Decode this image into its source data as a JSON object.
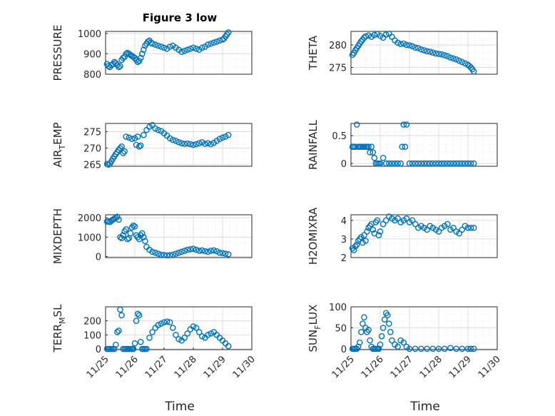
{
  "figure": {
    "title": "Figure 3 low"
  },
  "colors": {
    "marker": "#0072BD",
    "grid": "#dcdcdc",
    "axis": "#262626"
  },
  "chart_data": [
    {
      "type": "scatter",
      "ylabel": "PRESSURE",
      "ylabel_sub": null,
      "xlim": [
        0,
        5
      ],
      "ylim": [
        800,
        1010
      ],
      "yticks": [
        800,
        900,
        1000
      ],
      "x": [
        0.05,
        0.1,
        0.15,
        0.2,
        0.25,
        0.3,
        0.35,
        0.4,
        0.45,
        0.5,
        0.55,
        0.6,
        0.65,
        0.7,
        0.75,
        0.8,
        0.85,
        0.9,
        0.95,
        1.0,
        1.05,
        1.1,
        1.15,
        1.2,
        1.25,
        1.3,
        1.35,
        1.4,
        1.45,
        1.5,
        1.55,
        1.6,
        1.7,
        1.8,
        1.9,
        2.0,
        2.1,
        2.2,
        2.3,
        2.4,
        2.5,
        2.6,
        2.7,
        2.8,
        2.9,
        3.0,
        3.1,
        3.2,
        3.3,
        3.4,
        3.5,
        3.6,
        3.7,
        3.8,
        3.9,
        4.0,
        4.05,
        4.1,
        4.15,
        4.2
      ],
      "y": [
        850,
        840,
        835,
        845,
        850,
        860,
        855,
        845,
        835,
        840,
        870,
        880,
        885,
        900,
        905,
        900,
        895,
        890,
        885,
        880,
        870,
        860,
        865,
        880,
        900,
        920,
        940,
        950,
        960,
        965,
        955,
        950,
        945,
        940,
        935,
        930,
        925,
        935,
        940,
        930,
        920,
        910,
        915,
        920,
        925,
        930,
        925,
        920,
        930,
        935,
        945,
        950,
        955,
        960,
        965,
        970,
        975,
        985,
        995,
        1005
      ]
    },
    {
      "type": "scatter",
      "ylabel": "THETA",
      "ylabel_sub": null,
      "xlim": [
        0,
        5
      ],
      "ylim": [
        273.5,
        283
      ],
      "yticks": [
        275,
        280
      ],
      "x": [
        0.05,
        0.1,
        0.15,
        0.2,
        0.25,
        0.3,
        0.35,
        0.4,
        0.45,
        0.5,
        0.6,
        0.7,
        0.8,
        0.9,
        1.0,
        1.1,
        1.2,
        1.3,
        1.4,
        1.5,
        1.6,
        1.7,
        1.8,
        1.9,
        2.0,
        2.1,
        2.2,
        2.3,
        2.4,
        2.5,
        2.6,
        2.7,
        2.8,
        2.9,
        3.0,
        3.1,
        3.2,
        3.3,
        3.4,
        3.5,
        3.6,
        3.7,
        3.8,
        3.9,
        4.0,
        4.05,
        4.1,
        4.15,
        4.2
      ],
      "y": [
        277.8,
        278.2,
        278.8,
        279.3,
        279.8,
        280.3,
        280.8,
        281.2,
        281.6,
        281.9,
        282.1,
        281.8,
        282.2,
        282.4,
        282.0,
        281.6,
        282.3,
        282.5,
        281.8,
        281.0,
        280.5,
        280.2,
        280.3,
        280.0,
        279.9,
        279.7,
        279.4,
        279.3,
        279.0,
        278.8,
        278.6,
        278.5,
        278.3,
        278.1,
        278.0,
        277.9,
        277.7,
        277.5,
        277.2,
        277.0,
        276.8,
        276.5,
        276.2,
        275.9,
        275.6,
        275.3,
        275.0,
        274.6,
        274.1
      ]
    },
    {
      "type": "scatter",
      "ylabel": "AIR",
      "ylabel_sub": "T",
      "ylabel_after": "EMP",
      "xlim": [
        0,
        5
      ],
      "ylim": [
        264.5,
        277.5
      ],
      "yticks": [
        265,
        270,
        275
      ],
      "x": [
        0.05,
        0.1,
        0.15,
        0.2,
        0.25,
        0.3,
        0.35,
        0.4,
        0.45,
        0.5,
        0.55,
        0.6,
        0.65,
        0.7,
        0.8,
        0.9,
        1.0,
        1.05,
        1.1,
        1.15,
        1.2,
        1.3,
        1.4,
        1.5,
        1.6,
        1.7,
        1.8,
        1.9,
        2.0,
        2.1,
        2.2,
        2.3,
        2.4,
        2.5,
        2.6,
        2.7,
        2.8,
        2.9,
        3.0,
        3.1,
        3.2,
        3.3,
        3.4,
        3.5,
        3.6,
        3.7,
        3.8,
        3.9,
        4.0,
        4.1,
        4.2
      ],
      "y": [
        265.2,
        265.0,
        265.3,
        266.0,
        266.8,
        267.5,
        268.2,
        268.8,
        269.5,
        270.0,
        270.5,
        268.5,
        269.0,
        273.5,
        273.2,
        272.8,
        273.0,
        271.0,
        273.5,
        270.5,
        270.8,
        274.0,
        275.5,
        276.5,
        277.0,
        276.0,
        275.5,
        275.2,
        274.5,
        273.8,
        273.0,
        272.5,
        272.2,
        271.8,
        271.5,
        271.3,
        271.4,
        271.2,
        271.0,
        271.2,
        271.5,
        271.8,
        271.3,
        271.5,
        271.2,
        271.6,
        272.2,
        272.8,
        273.2,
        273.5,
        274.0
      ]
    },
    {
      "type": "scatter",
      "ylabel": "RAINFALL",
      "ylabel_sub": null,
      "xlim": [
        0,
        5
      ],
      "ylim": [
        -0.05,
        0.72
      ],
      "yticks": [
        0,
        0.5
      ],
      "x": [
        0.05,
        0.1,
        0.15,
        0.2,
        0.25,
        0.3,
        0.35,
        0.4,
        0.45,
        0.5,
        0.55,
        0.6,
        0.65,
        0.7,
        0.75,
        0.8,
        0.85,
        0.9,
        0.95,
        1.0,
        1.1,
        1.2,
        1.3,
        1.4,
        1.5,
        1.6,
        1.7,
        1.75,
        1.8,
        1.85,
        1.9,
        2.0,
        2.1,
        2.2,
        2.3,
        2.4,
        2.5,
        2.6,
        2.7,
        2.8,
        2.9,
        3.0,
        3.1,
        3.2,
        3.3,
        3.4,
        3.5,
        3.6,
        3.7,
        3.8,
        3.9,
        4.0,
        4.1,
        4.2
      ],
      "y": [
        0.3,
        0.3,
        0.3,
        0.7,
        0.3,
        0.3,
        0.3,
        0.3,
        0.3,
        0.3,
        0.3,
        0.3,
        0.2,
        0.3,
        0.2,
        0.1,
        0.0,
        0.0,
        0.0,
        0.0,
        0.1,
        0.0,
        0.0,
        0.0,
        0.0,
        0.0,
        0.0,
        0.3,
        0.7,
        0.3,
        0.7,
        0.0,
        0.0,
        0.0,
        0.0,
        0.0,
        0.0,
        0.0,
        0.0,
        0.0,
        0.0,
        0.0,
        0.0,
        0.0,
        0.0,
        0.0,
        0.0,
        0.0,
        0.0,
        0.0,
        0.0,
        0.0,
        0.0,
        0.0
      ]
    },
    {
      "type": "scatter",
      "ylabel": "MIXDEPTH",
      "ylabel_sub": null,
      "xlim": [
        0,
        5
      ],
      "ylim": [
        -50,
        2150
      ],
      "yticks": [
        0,
        1000,
        2000
      ],
      "x": [
        0.05,
        0.1,
        0.15,
        0.2,
        0.25,
        0.3,
        0.35,
        0.4,
        0.45,
        0.5,
        0.55,
        0.6,
        0.65,
        0.7,
        0.75,
        0.8,
        0.85,
        0.9,
        0.95,
        1.0,
        1.05,
        1.1,
        1.15,
        1.2,
        1.25,
        1.3,
        1.35,
        1.4,
        1.5,
        1.6,
        1.7,
        1.8,
        1.9,
        2.0,
        2.1,
        2.2,
        2.3,
        2.4,
        2.5,
        2.6,
        2.7,
        2.8,
        2.9,
        3.0,
        3.1,
        3.2,
        3.3,
        3.4,
        3.5,
        3.6,
        3.7,
        3.8,
        3.9,
        4.0,
        4.1,
        4.2
      ],
      "y": [
        1800,
        1820,
        1780,
        1850,
        1900,
        1950,
        2000,
        2050,
        1900,
        1000,
        950,
        1100,
        1300,
        1400,
        900,
        950,
        1200,
        1500,
        1600,
        1550,
        1100,
        1000,
        900,
        1100,
        1200,
        1000,
        800,
        500,
        350,
        250,
        200,
        150,
        100,
        80,
        60,
        70,
        100,
        150,
        200,
        250,
        300,
        350,
        380,
        400,
        350,
        300,
        320,
        280,
        250,
        300,
        320,
        280,
        200,
        180,
        150,
        120
      ]
    },
    {
      "type": "scatter",
      "ylabel": "H2OMIXRA",
      "ylabel_sub": null,
      "xlim": [
        0,
        5
      ],
      "ylim": [
        2,
        4.3
      ],
      "yticks": [
        2,
        3,
        4
      ],
      "x": [
        0.05,
        0.1,
        0.15,
        0.2,
        0.25,
        0.3,
        0.35,
        0.4,
        0.45,
        0.5,
        0.55,
        0.6,
        0.65,
        0.7,
        0.75,
        0.8,
        0.85,
        0.9,
        0.95,
        1.0,
        1.1,
        1.2,
        1.3,
        1.4,
        1.5,
        1.6,
        1.7,
        1.8,
        1.9,
        2.0,
        2.1,
        2.2,
        2.3,
        2.4,
        2.5,
        2.6,
        2.7,
        2.8,
        2.9,
        3.0,
        3.1,
        3.2,
        3.3,
        3.4,
        3.5,
        3.6,
        3.7,
        3.8,
        3.9,
        4.0,
        4.1,
        4.2
      ],
      "y": [
        2.5,
        2.4,
        2.6,
        2.7,
        2.9,
        3.0,
        3.1,
        2.8,
        3.2,
        2.9,
        3.4,
        3.6,
        3.7,
        3.8,
        3.5,
        3.3,
        3.9,
        4.0,
        3.2,
        3.4,
        3.8,
        4.0,
        4.2,
        4.1,
        4.0,
        4.1,
        3.9,
        4.0,
        4.1,
        3.9,
        4.0,
        3.8,
        3.6,
        3.7,
        3.6,
        3.5,
        3.7,
        3.6,
        3.5,
        3.4,
        3.6,
        3.7,
        3.8,
        3.5,
        3.6,
        3.4,
        3.3,
        3.5,
        3.7,
        3.6,
        3.6,
        3.6
      ]
    },
    {
      "type": "scatter",
      "ylabel": "TERR",
      "ylabel_sub": "M",
      "ylabel_after": "SL",
      "xlim": [
        0,
        5
      ],
      "ylim": [
        -5,
        300
      ],
      "yticks": [
        0,
        100,
        200
      ],
      "x": [
        0.05,
        0.1,
        0.15,
        0.2,
        0.25,
        0.3,
        0.35,
        0.4,
        0.45,
        0.5,
        0.55,
        0.6,
        0.65,
        0.7,
        0.75,
        0.8,
        0.85,
        0.9,
        0.95,
        1.0,
        1.05,
        1.1,
        1.15,
        1.2,
        1.25,
        1.3,
        1.35,
        1.4,
        1.5,
        1.6,
        1.7,
        1.8,
        1.9,
        2.0,
        2.1,
        2.2,
        2.3,
        2.4,
        2.5,
        2.6,
        2.7,
        2.8,
        2.9,
        3.0,
        3.1,
        3.2,
        3.3,
        3.4,
        3.5,
        3.6,
        3.7,
        3.8,
        3.9,
        4.0,
        4.1,
        4.2
      ],
      "y": [
        0,
        0,
        0,
        0,
        0,
        0,
        30,
        120,
        130,
        280,
        240,
        0,
        0,
        0,
        0,
        0,
        0,
        0,
        0,
        40,
        200,
        250,
        240,
        50,
        0,
        0,
        0,
        0,
        80,
        120,
        150,
        170,
        180,
        190,
        195,
        190,
        150,
        100,
        70,
        60,
        80,
        110,
        140,
        160,
        150,
        120,
        90,
        80,
        100,
        110,
        120,
        100,
        80,
        60,
        40,
        20
      ]
    },
    {
      "type": "scatter",
      "ylabel": "SUN",
      "ylabel_sub": "F",
      "ylabel_after": "LUX",
      "xlim": [
        0,
        5
      ],
      "ylim": [
        -2,
        100
      ],
      "yticks": [
        0,
        50,
        100
      ],
      "x": [
        0.05,
        0.1,
        0.15,
        0.2,
        0.25,
        0.3,
        0.35,
        0.4,
        0.45,
        0.5,
        0.55,
        0.6,
        0.65,
        0.7,
        0.75,
        0.8,
        0.85,
        0.9,
        0.95,
        1.0,
        1.05,
        1.1,
        1.15,
        1.2,
        1.25,
        1.3,
        1.35,
        1.4,
        1.5,
        1.6,
        1.7,
        1.8,
        1.9,
        2.0,
        2.2,
        2.4,
        2.6,
        2.8,
        3.0,
        3.2,
        3.4,
        3.6,
        3.8,
        4.0,
        4.1,
        4.2
      ],
      "y": [
        0,
        0,
        0,
        0,
        5,
        15,
        40,
        60,
        75,
        50,
        40,
        45,
        20,
        5,
        0,
        0,
        0,
        0,
        0,
        10,
        30,
        50,
        70,
        85,
        80,
        60,
        40,
        20,
        10,
        5,
        20,
        15,
        5,
        0,
        0,
        0,
        0,
        0,
        0,
        0,
        2,
        0,
        0,
        0,
        0,
        0
      ]
    }
  ],
  "xaxis": {
    "ticks": [
      "11/25",
      "11/26",
      "11/27",
      "11/28",
      "11/29",
      "11/30"
    ],
    "label": "Time"
  }
}
